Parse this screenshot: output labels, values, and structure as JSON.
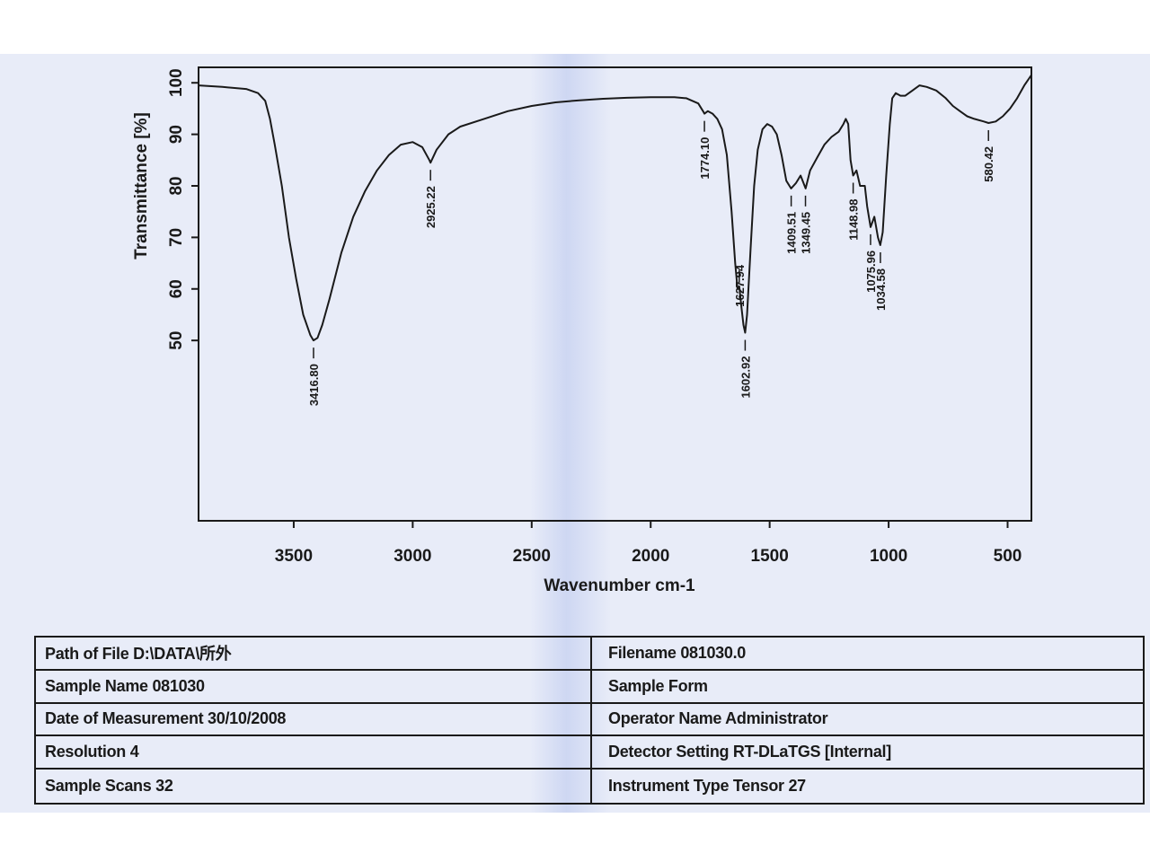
{
  "chart_data": {
    "type": "line",
    "title": "",
    "xlabel": "Wavenumber cm-1",
    "ylabel": "Transmittance [%]",
    "xlim": [
      3900,
      400
    ],
    "ylim": [
      15,
      103
    ],
    "x_ticks": [
      3500,
      3000,
      2500,
      2000,
      1500,
      1000,
      500
    ],
    "y_ticks": [
      50,
      60,
      70,
      80,
      90,
      100
    ],
    "grid": false,
    "series": [
      {
        "points": [
          [
            3900,
            99.5
          ],
          [
            3800,
            99.2
          ],
          [
            3700,
            98.8
          ],
          [
            3650,
            98.0
          ],
          [
            3620,
            96.5
          ],
          [
            3600,
            93.0
          ],
          [
            3580,
            88.0
          ],
          [
            3550,
            80.0
          ],
          [
            3520,
            70.0
          ],
          [
            3490,
            62.0
          ],
          [
            3460,
            55.0
          ],
          [
            3430,
            51.0
          ],
          [
            3417,
            50.0
          ],
          [
            3400,
            50.5
          ],
          [
            3380,
            53.0
          ],
          [
            3350,
            58.0
          ],
          [
            3300,
            67.0
          ],
          [
            3250,
            74.0
          ],
          [
            3200,
            79.0
          ],
          [
            3150,
            83.0
          ],
          [
            3100,
            86.0
          ],
          [
            3050,
            88.0
          ],
          [
            3000,
            88.5
          ],
          [
            2960,
            87.5
          ],
          [
            2930,
            85.0
          ],
          [
            2925,
            84.5
          ],
          [
            2900,
            87.0
          ],
          [
            2850,
            90.0
          ],
          [
            2800,
            91.5
          ],
          [
            2700,
            93.0
          ],
          [
            2600,
            94.5
          ],
          [
            2500,
            95.5
          ],
          [
            2400,
            96.2
          ],
          [
            2300,
            96.6
          ],
          [
            2200,
            96.9
          ],
          [
            2100,
            97.1
          ],
          [
            2000,
            97.2
          ],
          [
            1900,
            97.2
          ],
          [
            1850,
            97.0
          ],
          [
            1800,
            96.0
          ],
          [
            1780,
            94.5
          ],
          [
            1774,
            94.0
          ],
          [
            1760,
            94.5
          ],
          [
            1740,
            94.0
          ],
          [
            1720,
            93.0
          ],
          [
            1700,
            91.0
          ],
          [
            1680,
            86.0
          ],
          [
            1660,
            75.0
          ],
          [
            1645,
            65.0
          ],
          [
            1635,
            60.0
          ],
          [
            1628,
            60.5
          ],
          [
            1620,
            57.0
          ],
          [
            1610,
            53.0
          ],
          [
            1603,
            51.5
          ],
          [
            1595,
            55.0
          ],
          [
            1580,
            68.0
          ],
          [
            1565,
            80.0
          ],
          [
            1550,
            87.0
          ],
          [
            1530,
            91.0
          ],
          [
            1510,
            92.0
          ],
          [
            1490,
            91.5
          ],
          [
            1470,
            90.0
          ],
          [
            1450,
            86.0
          ],
          [
            1430,
            81.0
          ],
          [
            1410,
            79.5
          ],
          [
            1390,
            80.5
          ],
          [
            1370,
            82.0
          ],
          [
            1349,
            79.5
          ],
          [
            1330,
            83.0
          ],
          [
            1300,
            85.5
          ],
          [
            1270,
            88.0
          ],
          [
            1240,
            89.5
          ],
          [
            1210,
            90.5
          ],
          [
            1190,
            92.0
          ],
          [
            1180,
            93.0
          ],
          [
            1170,
            92.0
          ],
          [
            1160,
            85.0
          ],
          [
            1149,
            82.0
          ],
          [
            1135,
            83.0
          ],
          [
            1120,
            80.0
          ],
          [
            1100,
            80.0
          ],
          [
            1090,
            76.0
          ],
          [
            1076,
            72.0
          ],
          [
            1060,
            74.0
          ],
          [
            1045,
            70.0
          ],
          [
            1035,
            68.5
          ],
          [
            1025,
            71.0
          ],
          [
            1010,
            82.0
          ],
          [
            995,
            92.0
          ],
          [
            985,
            97.0
          ],
          [
            970,
            98.0
          ],
          [
            950,
            97.5
          ],
          [
            930,
            97.5
          ],
          [
            900,
            98.5
          ],
          [
            870,
            99.5
          ],
          [
            840,
            99.2
          ],
          [
            800,
            98.5
          ],
          [
            760,
            97.0
          ],
          [
            730,
            95.5
          ],
          [
            700,
            94.5
          ],
          [
            670,
            93.5
          ],
          [
            640,
            93.0
          ],
          [
            600,
            92.5
          ],
          [
            580,
            92.2
          ],
          [
            550,
            92.5
          ],
          [
            520,
            93.5
          ],
          [
            490,
            95.0
          ],
          [
            460,
            97.0
          ],
          [
            430,
            99.5
          ],
          [
            400,
            101.5
          ]
        ]
      }
    ],
    "peaks": [
      {
        "x": 3416.8,
        "y": 50.0,
        "label": "3416.80",
        "side": "below"
      },
      {
        "x": 2925.22,
        "y": 84.5,
        "label": "2925.22",
        "side": "below"
      },
      {
        "x": 1774.1,
        "y": 94.0,
        "label": "1774.10",
        "side": "below"
      },
      {
        "x": 1627.94,
        "y": 60.5,
        "label": "1627.94",
        "side": "above"
      },
      {
        "x": 1602.92,
        "y": 51.5,
        "label": "1602.92",
        "side": "below"
      },
      {
        "x": 1409.51,
        "y": 79.5,
        "label": "1409.51",
        "side": "below"
      },
      {
        "x": 1349.45,
        "y": 79.5,
        "label": "1349.45",
        "side": "below"
      },
      {
        "x": 1148.98,
        "y": 82.0,
        "label": "1148.98",
        "side": "below"
      },
      {
        "x": 1075.96,
        "y": 72.0,
        "label": "1075.96",
        "side": "below"
      },
      {
        "x": 1034.58,
        "y": 68.5,
        "label": "1034.58",
        "side": "below"
      },
      {
        "x": 580.42,
        "y": 92.2,
        "label": "580.42",
        "side": "below"
      }
    ]
  },
  "info_table": {
    "left": [
      "Path of File D:\\DATA\\所外",
      "Sample Name 081030",
      "Date of Measurement 30/10/2008",
      "Resolution 4",
      "Sample Scans 32"
    ],
    "right": [
      "Filename 081030.0",
      "Sample Form",
      "Operator Name Administrator",
      "Detector Setting RT-DLaTGS [Internal]",
      "Instrument Type Tensor 27"
    ]
  }
}
